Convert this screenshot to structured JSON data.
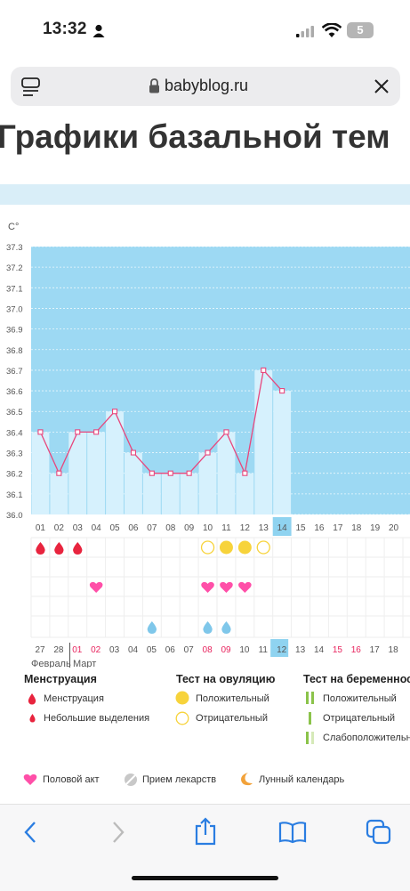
{
  "status_bar": {
    "time": "13:32",
    "battery": "5"
  },
  "browser": {
    "url": "babyblog.ru"
  },
  "page": {
    "heading": "Графики базальной тем"
  },
  "chart_data": {
    "type": "line",
    "title": "",
    "ylabel": "C°",
    "ylim": [
      36.0,
      37.3
    ],
    "yticks": [
      "37.3",
      "37.2",
      "37.1",
      "37.0",
      "36.9",
      "36.8",
      "36.7",
      "36.6",
      "36.5",
      "36.4",
      "36.3",
      "36.2",
      "36.1",
      "36.0"
    ],
    "cycle_days": [
      "01",
      "02",
      "03",
      "04",
      "05",
      "06",
      "07",
      "08",
      "09",
      "10",
      "11",
      "12",
      "13",
      "14",
      "15",
      "16",
      "17",
      "18",
      "19",
      "20"
    ],
    "temperatures": [
      36.4,
      36.2,
      36.4,
      36.4,
      36.5,
      36.3,
      36.2,
      36.2,
      36.2,
      36.3,
      36.4,
      36.2,
      36.7,
      36.6
    ],
    "current_day": "14",
    "dates": [
      "27",
      "28",
      "01",
      "02",
      "03",
      "04",
      "05",
      "06",
      "07",
      "08",
      "09",
      "10",
      "11",
      "12",
      "13",
      "14",
      "15",
      "16",
      "17",
      "18"
    ],
    "highlight_dates": [
      "01",
      "02",
      "08",
      "09",
      "15",
      "16"
    ],
    "current_date": "12",
    "months": [
      "Февраль",
      "Март"
    ],
    "menstruation_days": [
      1,
      2,
      3
    ],
    "ovulation_positive_days": [
      11,
      12
    ],
    "ovulation_negative_days": [
      10,
      13
    ],
    "intercourse_days": [
      4,
      10,
      11,
      12
    ],
    "discharge_days": [
      7,
      10,
      11
    ],
    "grid": true
  },
  "legend": {
    "menstruation": {
      "title": "Менструация",
      "items": [
        "Менструация",
        "Небольшие выделения"
      ]
    },
    "ovulation": {
      "title": "Тест на овуляцию",
      "items": [
        "Положительный",
        "Отрицательный"
      ]
    },
    "pregnancy": {
      "title": "Тест на беременность",
      "items": [
        "Положительный",
        "Отрицательный",
        "Слабоположительный"
      ]
    },
    "other": [
      "Половой акт",
      "Прием лекарств",
      "Лунный календарь"
    ]
  },
  "colors": {
    "chart_fill": "#9dd9f3",
    "bar": "#d6f1fd",
    "line": "#e8467c",
    "blood": "#e8243e",
    "heart": "#ff4fa8",
    "drop": "#7fc7ea",
    "ov_yellow": "#f7d33b",
    "green": "#8bc34a"
  }
}
